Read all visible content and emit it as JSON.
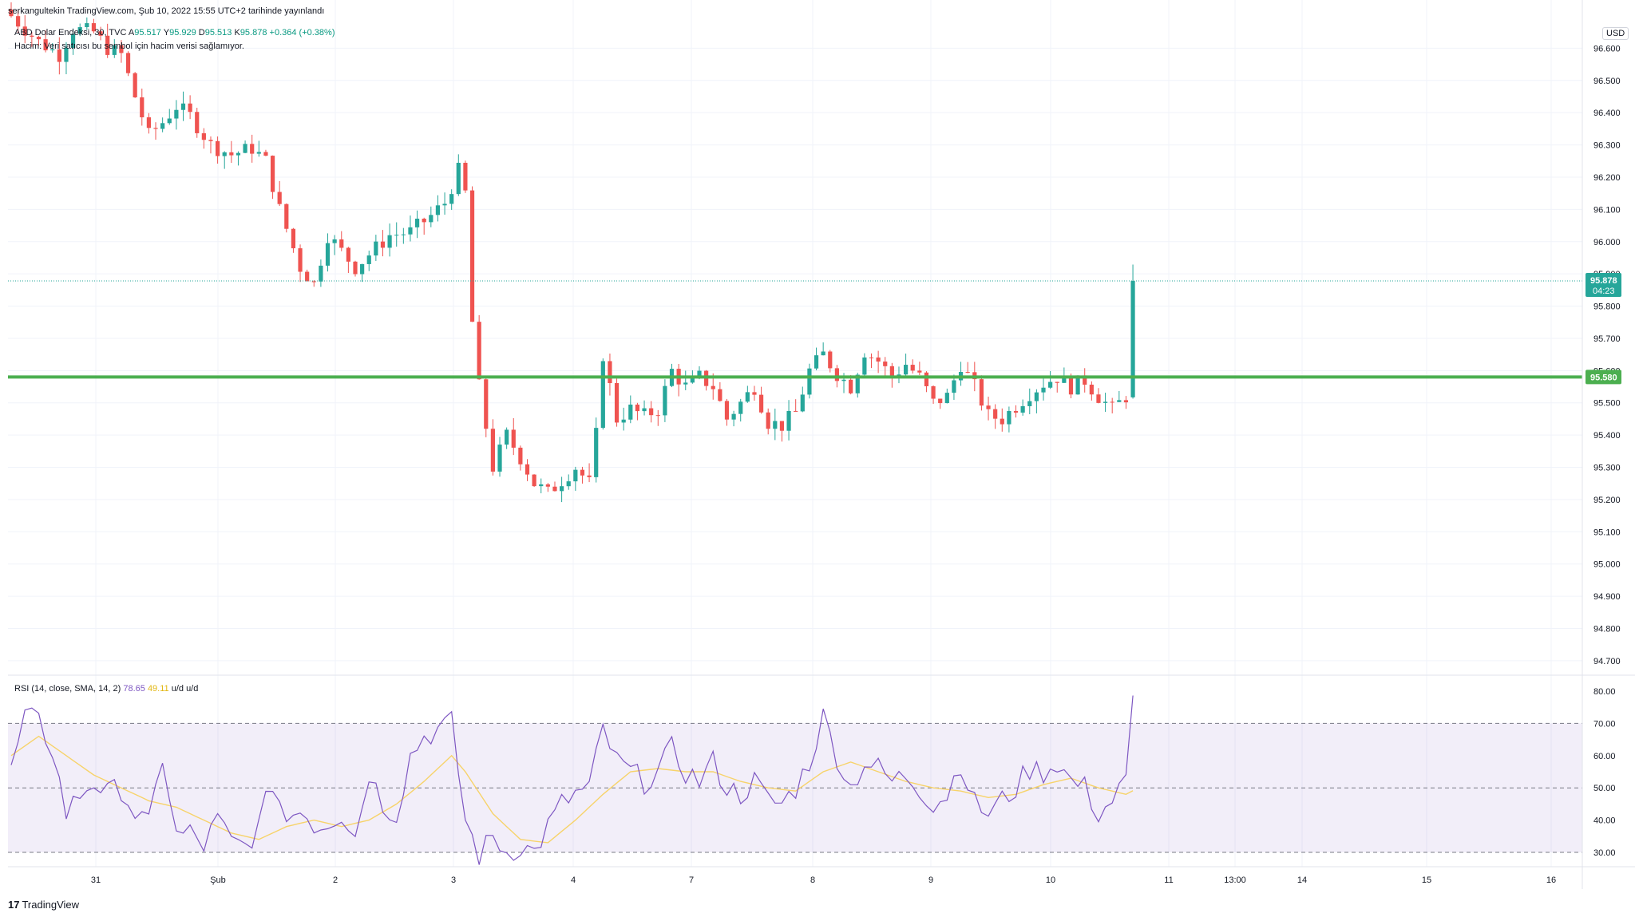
{
  "header": {
    "publish_line": "serkangultekin TradingView.com, Şub 10, 2022 15:55 UTC+2 tarihinde yayınlandı",
    "symbol": "ABD Dolar Endeksi, 30, TVC",
    "open_label": "A",
    "open": "95.517",
    "high_label": "Y",
    "high": "95.929",
    "low_label": "D",
    "low": "95.513",
    "close_label": "K",
    "close": "95.878",
    "change": "+0.364 (+0.38%)",
    "volume_note": "Hacim: Veri satıcısı bu sembol için hacim verisi sağlamıyor."
  },
  "currency_button": "USD",
  "rsi_header": {
    "label": "RSI (14, close, SMA, 14, 2)",
    "value": "78.65",
    "sma_value": "49.11",
    "extra": "u/d  u/d"
  },
  "price_axis": {
    "ticks": [
      "96.600",
      "96.500",
      "96.400",
      "96.300",
      "96.200",
      "96.100",
      "96.000",
      "95.900",
      "95.800",
      "95.700",
      "95.600",
      "95.500",
      "95.400",
      "95.300",
      "95.200",
      "95.100",
      "95.000",
      "94.900",
      "94.800",
      "94.700"
    ],
    "last_price": "95.878",
    "countdown": "04:23",
    "line_price": "95.580"
  },
  "rsi_axis": {
    "ticks": [
      "80.00",
      "70.00",
      "60.00",
      "50.00",
      "40.00",
      "30.00"
    ]
  },
  "time_axis": {
    "labels": [
      "31",
      "Şub",
      "2",
      "3",
      "4",
      "7",
      "8",
      "9",
      "10",
      "11",
      "13:00",
      "14",
      "15",
      "16"
    ]
  },
  "footer": {
    "brand": "TradingView"
  },
  "colors": {
    "up": "#26a69a",
    "down": "#ef5350",
    "horizontal_line": "#4caf50",
    "rsi": "#7e57c2",
    "rsi_sma": "#f7d36a",
    "rsi_band": "#7e57c2",
    "grid": "#f0f3fa",
    "last_price_bg": "#26a69a"
  },
  "chart_data": [
    {
      "type": "candlestick",
      "title": "ABD Dolar Endeksi, 30, TVC",
      "timeframe": "30",
      "ylim": [
        94.67,
        96.7
      ],
      "horizontal_line": 95.58,
      "last_close": 95.878,
      "last_bar": {
        "open": 95.517,
        "high": 95.929,
        "low": 95.513,
        "close": 95.878
      },
      "close_path": [
        [
          0,
          96.7
        ],
        [
          4,
          96.62
        ],
        [
          7,
          96.58
        ],
        [
          9,
          96.66
        ],
        [
          12,
          96.65
        ],
        [
          14,
          96.6
        ],
        [
          16,
          96.58
        ],
        [
          18,
          96.45
        ],
        [
          20,
          96.33
        ],
        [
          22,
          96.37
        ],
        [
          24,
          96.42
        ],
        [
          26,
          96.39
        ],
        [
          29,
          96.3
        ],
        [
          32,
          96.27
        ],
        [
          35,
          96.29
        ],
        [
          37,
          96.25
        ],
        [
          39,
          96.1
        ],
        [
          42,
          95.92
        ],
        [
          44,
          95.87
        ],
        [
          46,
          96.02
        ],
        [
          48,
          95.97
        ],
        [
          50,
          95.92
        ],
        [
          52,
          95.96
        ],
        [
          55,
          96.02
        ],
        [
          58,
          96.03
        ],
        [
          61,
          96.08
        ],
        [
          63,
          96.12
        ],
        [
          65,
          96.22
        ],
        [
          66,
          96.15
        ],
        [
          67,
          95.75
        ],
        [
          68,
          95.55
        ],
        [
          70,
          95.3
        ],
        [
          72,
          95.4
        ],
        [
          74,
          95.33
        ],
        [
          76,
          95.25
        ],
        [
          78,
          95.22
        ],
        [
          80,
          95.26
        ],
        [
          82,
          95.3
        ],
        [
          84,
          95.25
        ],
        [
          85,
          95.4
        ],
        [
          86,
          95.65
        ],
        [
          88,
          95.45
        ],
        [
          90,
          95.48
        ],
        [
          92,
          95.46
        ],
        [
          94,
          95.48
        ],
        [
          96,
          95.6
        ],
        [
          98,
          95.55
        ],
        [
          100,
          95.58
        ],
        [
          102,
          95.55
        ],
        [
          104,
          95.45
        ],
        [
          106,
          95.5
        ],
        [
          108,
          95.55
        ],
        [
          110,
          95.44
        ],
        [
          112,
          95.43
        ],
        [
          114,
          95.47
        ],
        [
          116,
          95.6
        ],
        [
          118,
          95.65
        ],
        [
          120,
          95.59
        ],
        [
          122,
          95.55
        ],
        [
          124,
          95.66
        ],
        [
          126,
          95.63
        ],
        [
          128,
          95.58
        ],
        [
          130,
          95.62
        ],
        [
          132,
          95.58
        ],
        [
          134,
          95.5
        ],
        [
          136,
          95.52
        ],
        [
          138,
          95.62
        ],
        [
          140,
          95.55
        ],
        [
          142,
          95.46
        ],
        [
          144,
          95.45
        ],
        [
          146,
          95.49
        ],
        [
          148,
          95.53
        ],
        [
          150,
          95.56
        ],
        [
          152,
          95.58
        ],
        [
          154,
          95.55
        ],
        [
          156,
          95.57
        ],
        [
          158,
          95.52
        ],
        [
          160,
          95.48
        ],
        [
          162,
          95.52
        ],
        [
          163,
          95.88
        ]
      ],
      "bar_count": 164
    },
    {
      "type": "line",
      "title": "RSI (14, close, SMA, 14, 2)",
      "ylim": [
        27,
        84
      ],
      "bands": [
        30,
        50,
        70
      ],
      "series": [
        {
          "name": "RSI",
          "value": 78.65,
          "path": [
            [
              0,
              55
            ],
            [
              2,
              72
            ],
            [
              4,
              70
            ],
            [
              6,
              62
            ],
            [
              8,
              42
            ],
            [
              10,
              48
            ],
            [
              12,
              52
            ],
            [
              14,
              48
            ],
            [
              16,
              50
            ],
            [
              18,
              42
            ],
            [
              20,
              38
            ],
            [
              22,
              60
            ],
            [
              24,
              35
            ],
            [
              26,
              36
            ],
            [
              28,
              32
            ],
            [
              30,
              40
            ],
            [
              32,
              33
            ],
            [
              34,
              32
            ],
            [
              36,
              38
            ],
            [
              38,
              52
            ],
            [
              40,
              40
            ],
            [
              42,
              45
            ],
            [
              44,
              38
            ],
            [
              46,
              40
            ],
            [
              48,
              42
            ],
            [
              50,
              35
            ],
            [
              52,
              55
            ],
            [
              54,
              45
            ],
            [
              56,
              42
            ],
            [
              58,
              60
            ],
            [
              60,
              66
            ],
            [
              62,
              68
            ],
            [
              64,
              70
            ],
            [
              66,
              40
            ],
            [
              68,
              29
            ],
            [
              70,
              35
            ],
            [
              72,
              30
            ],
            [
              74,
              32
            ],
            [
              76,
              30
            ],
            [
              78,
              38
            ],
            [
              80,
              45
            ],
            [
              82,
              48
            ],
            [
              84,
              50
            ],
            [
              86,
              68
            ],
            [
              88,
              58
            ],
            [
              90,
              55
            ],
            [
              92,
              52
            ],
            [
              94,
              55
            ],
            [
              96,
              62
            ],
            [
              98,
              55
            ],
            [
              100,
              52
            ],
            [
              102,
              58
            ],
            [
              104,
              50
            ],
            [
              106,
              48
            ],
            [
              108,
              52
            ],
            [
              110,
              46
            ],
            [
              112,
              45
            ],
            [
              114,
              50
            ],
            [
              116,
              58
            ],
            [
              118,
              72
            ],
            [
              120,
              60
            ],
            [
              122,
              50
            ],
            [
              124,
              58
            ],
            [
              126,
              56
            ],
            [
              128,
              52
            ],
            [
              130,
              54
            ],
            [
              132,
              50
            ],
            [
              134,
              45
            ],
            [
              136,
              48
            ],
            [
              138,
              58
            ],
            [
              140,
              45
            ],
            [
              142,
              42
            ],
            [
              144,
              46
            ],
            [
              146,
              50
            ],
            [
              148,
              56
            ],
            [
              150,
              55
            ],
            [
              152,
              58
            ],
            [
              154,
              52
            ],
            [
              156,
              50
            ],
            [
              158,
              42
            ],
            [
              160,
              46
            ],
            [
              162,
              52
            ],
            [
              163,
              78.65
            ]
          ]
        },
        {
          "name": "SMA",
          "value": 49.11,
          "path": [
            [
              0,
              60
            ],
            [
              4,
              66
            ],
            [
              8,
              60
            ],
            [
              12,
              54
            ],
            [
              16,
              50
            ],
            [
              20,
              46
            ],
            [
              24,
              44
            ],
            [
              28,
              40
            ],
            [
              32,
              36
            ],
            [
              36,
              34
            ],
            [
              40,
              38
            ],
            [
              44,
              40
            ],
            [
              48,
              38
            ],
            [
              52,
              40
            ],
            [
              56,
              45
            ],
            [
              60,
              52
            ],
            [
              64,
              60
            ],
            [
              66,
              55
            ],
            [
              70,
              42
            ],
            [
              74,
              34
            ],
            [
              78,
              33
            ],
            [
              82,
              40
            ],
            [
              86,
              48
            ],
            [
              90,
              55
            ],
            [
              94,
              56
            ],
            [
              98,
              55
            ],
            [
              102,
              55
            ],
            [
              106,
              52
            ],
            [
              110,
              50
            ],
            [
              114,
              49
            ],
            [
              118,
              55
            ],
            [
              122,
              58
            ],
            [
              126,
              55
            ],
            [
              130,
              52
            ],
            [
              134,
              50
            ],
            [
              138,
              49
            ],
            [
              142,
              47
            ],
            [
              146,
              48
            ],
            [
              150,
              51
            ],
            [
              154,
              53
            ],
            [
              158,
              50
            ],
            [
              162,
              48
            ],
            [
              163,
              49.11
            ]
          ]
        }
      ]
    }
  ]
}
